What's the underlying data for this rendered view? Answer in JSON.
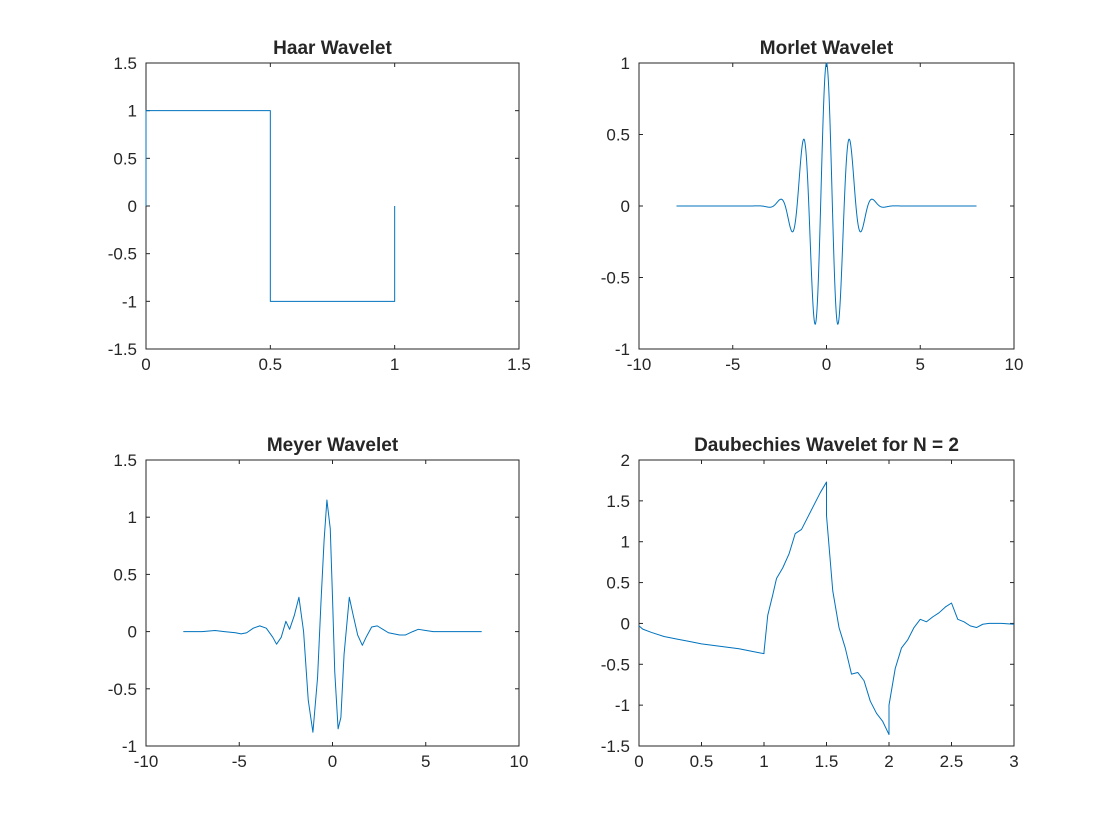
{
  "chart_data": [
    {
      "type": "line",
      "title": "Haar Wavelet",
      "xlabel": "",
      "ylabel": "",
      "xlim": [
        0,
        1.5
      ],
      "ylim": [
        -1.5,
        1.5
      ],
      "xticks": [
        0,
        0.5,
        1,
        1.5
      ],
      "yticks": [
        -1.5,
        -1,
        -0.5,
        0,
        0.5,
        1,
        1.5
      ],
      "xticklabels": [
        "0",
        "0.5",
        "1",
        "1.5"
      ],
      "yticklabels": [
        "-1.5",
        "-1",
        "-0.5",
        "0",
        "0.5",
        "1",
        "1.5"
      ],
      "grid": false,
      "series": [
        {
          "color": "#0072BD",
          "x": [
            0,
            0,
            0.5,
            0.5,
            1,
            1
          ],
          "y": [
            0,
            1,
            1,
            -1,
            -1,
            0
          ]
        }
      ]
    },
    {
      "type": "line",
      "title": "Morlet Wavelet",
      "xlabel": "",
      "ylabel": "",
      "xlim": [
        -10,
        10
      ],
      "ylim": [
        -1,
        1
      ],
      "xticks": [
        -10,
        -5,
        0,
        5,
        10
      ],
      "yticks": [
        -1,
        -0.5,
        0,
        0.5,
        1
      ],
      "xticklabels": [
        "-10",
        "-5",
        "0",
        "5",
        "10"
      ],
      "yticklabels": [
        "-1",
        "-0.5",
        "0",
        "0.5",
        "1"
      ],
      "grid": false,
      "series": [
        {
          "color": "#0072BD",
          "function": "morlet",
          "x_range": [
            -8,
            8
          ]
        }
      ]
    },
    {
      "type": "line",
      "title": "Meyer Wavelet",
      "xlabel": "",
      "ylabel": "",
      "xlim": [
        -10,
        10
      ],
      "ylim": [
        -1,
        1.5
      ],
      "xticks": [
        -10,
        -5,
        0,
        5,
        10
      ],
      "yticks": [
        -1,
        -0.5,
        0,
        0.5,
        1,
        1.5
      ],
      "xticklabels": [
        "-10",
        "-5",
        "0",
        "5",
        "10"
      ],
      "yticklabels": [
        "-1",
        "-0.5",
        "0",
        "0.5",
        "1",
        "1.5"
      ],
      "grid": false,
      "series": [
        {
          "color": "#0072BD",
          "x": [
            -8,
            -7,
            -6.3,
            -5.8,
            -5.2,
            -4.9,
            -4.6,
            -4.25,
            -3.9,
            -3.55,
            -3.2,
            -3.0,
            -2.75,
            -2.5,
            -2.3,
            -2.05,
            -1.8,
            -1.55,
            -1.3,
            -1.05,
            -0.8,
            -0.62,
            -0.45,
            -0.3,
            -0.12,
            0.0,
            0.12,
            0.3,
            0.45,
            0.62,
            0.9,
            1.1,
            1.35,
            1.6,
            1.8,
            2.1,
            2.4,
            2.7,
            3.0,
            3.3,
            3.6,
            3.9,
            4.3,
            4.6,
            5.0,
            5.4,
            5.8,
            6.2,
            7.0,
            8.0
          ],
          "y": [
            0.0,
            0.0,
            0.01,
            0.0,
            -0.01,
            -0.02,
            -0.01,
            0.03,
            0.05,
            0.03,
            -0.05,
            -0.11,
            -0.05,
            0.09,
            0.02,
            0.14,
            0.3,
            0.0,
            -0.6,
            -0.88,
            -0.4,
            0.25,
            0.8,
            1.15,
            0.9,
            0.3,
            -0.35,
            -0.85,
            -0.75,
            -0.2,
            0.3,
            0.15,
            -0.03,
            -0.12,
            -0.05,
            0.04,
            0.05,
            0.02,
            -0.01,
            -0.02,
            -0.03,
            -0.03,
            0.0,
            0.02,
            0.01,
            0.0,
            0.0,
            0.0,
            0.0,
            0.0
          ]
        }
      ]
    },
    {
      "type": "line",
      "title": "Daubechies Wavelet for N = 2",
      "xlabel": "",
      "ylabel": "",
      "xlim": [
        0,
        3
      ],
      "ylim": [
        -1.5,
        2
      ],
      "xticks": [
        0,
        0.5,
        1,
        1.5,
        2,
        2.5,
        3
      ],
      "yticks": [
        -1.5,
        -1,
        -0.5,
        0,
        0.5,
        1,
        1.5,
        2
      ],
      "xticklabels": [
        "0",
        "0.5",
        "1",
        "1.5",
        "2",
        "2.5",
        "3"
      ],
      "yticklabels": [
        "-1.5",
        "-1",
        "-0.5",
        "0",
        "0.5",
        "1",
        "1.5",
        "2"
      ],
      "grid": false,
      "series": [
        {
          "color": "#0072BD",
          "x": [
            0,
            0.03,
            0.1,
            0.2,
            0.3,
            0.4,
            0.5,
            0.6,
            0.7,
            0.8,
            0.9,
            1.0,
            1.0,
            1.03,
            1.07,
            1.1,
            1.15,
            1.2,
            1.25,
            1.3,
            1.35,
            1.4,
            1.45,
            1.5,
            1.5,
            1.55,
            1.6,
            1.65,
            1.7,
            1.75,
            1.8,
            1.85,
            1.9,
            1.95,
            2.0,
            2.0,
            2.05,
            2.1,
            2.15,
            2.2,
            2.25,
            2.3,
            2.35,
            2.4,
            2.45,
            2.5,
            2.55,
            2.6,
            2.65,
            2.7,
            2.75,
            2.8,
            2.9,
            3.0
          ],
          "y": [
            -0.03,
            -0.07,
            -0.11,
            -0.16,
            -0.19,
            -0.22,
            -0.25,
            -0.27,
            -0.29,
            -0.31,
            -0.34,
            -0.37,
            -0.35,
            0.1,
            0.35,
            0.55,
            0.68,
            0.85,
            1.1,
            1.15,
            1.3,
            1.45,
            1.6,
            1.73,
            1.32,
            0.4,
            -0.05,
            -0.3,
            -0.62,
            -0.6,
            -0.7,
            -0.95,
            -1.1,
            -1.2,
            -1.36,
            -1.0,
            -0.55,
            -0.3,
            -0.2,
            -0.05,
            0.05,
            0.02,
            0.08,
            0.13,
            0.2,
            0.25,
            0.05,
            0.02,
            -0.03,
            -0.05,
            -0.01,
            0.0,
            0.0,
            -0.01
          ]
        }
      ]
    }
  ]
}
